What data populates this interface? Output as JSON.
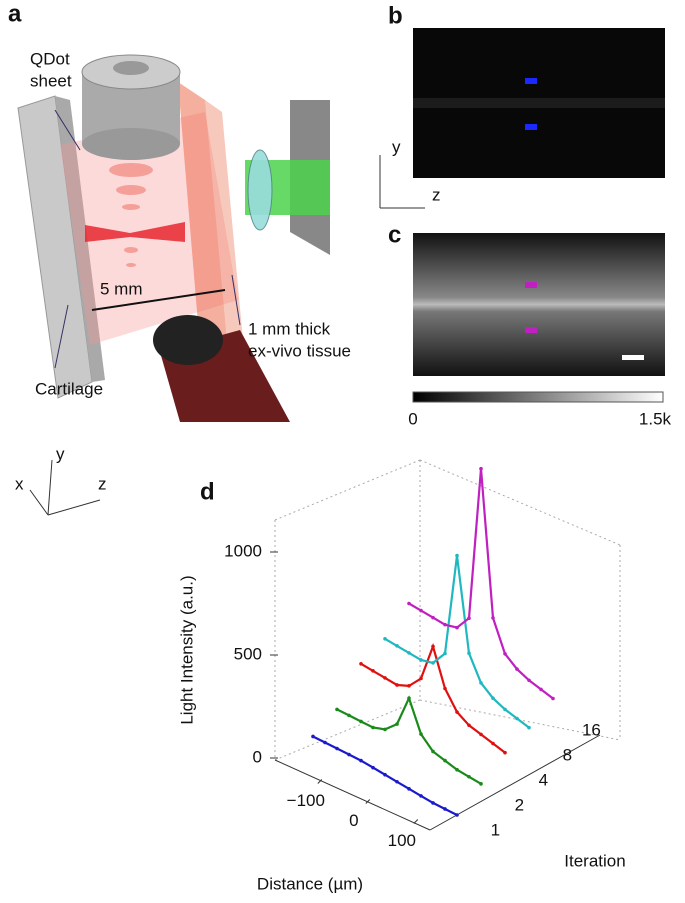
{
  "panel_a": {
    "label": "a",
    "qdot_sheet": [
      "QDot",
      "sheet"
    ],
    "distance": "5 mm",
    "tissue": [
      "1 mm thick",
      "ex-vivo tissue"
    ],
    "cartilage": "Cartilage",
    "axes": {
      "x": "x",
      "y": "y",
      "z": "z"
    }
  },
  "panel_b": {
    "label": "b",
    "axis_y": "y",
    "axis_z": "z"
  },
  "panel_c": {
    "label": "c",
    "colorbar_min": "0",
    "colorbar_max": "1.5k"
  },
  "chart_data": {
    "type": "line3d",
    "label": "d",
    "ylabel": "Light Intensity (a.u.)",
    "xlabel": "Distance (µm)",
    "zlabel": "Iteration",
    "x": [
      -150,
      -125,
      -100,
      -75,
      -50,
      -25,
      0,
      25,
      50,
      75,
      100,
      125,
      150
    ],
    "xticks": [
      {
        "value": -100,
        "label": "−100"
      },
      0,
      100
    ],
    "ylim": [
      0,
      1150
    ],
    "yticks": [
      0,
      500,
      1000
    ],
    "categories": [
      "1",
      "2",
      "4",
      "8",
      "16"
    ],
    "series": [
      {
        "color": "#1a1acc",
        "values": [
          90,
          85,
          80,
          75,
          70,
          60,
          50,
          40,
          30,
          20,
          10,
          5,
          0
        ]
      },
      {
        "color": "#1a8a1a",
        "values": [
          100,
          95,
          90,
          85,
          100,
          150,
          300,
          150,
          90,
          70,
          50,
          40,
          30
        ]
      },
      {
        "color": "#e01010",
        "values": [
          200,
          190,
          180,
          170,
          190,
          250,
          430,
          250,
          160,
          120,
          100,
          80,
          60
        ]
      },
      {
        "color": "#20b8c0",
        "values": [
          200,
          190,
          180,
          170,
          180,
          250,
          750,
          300,
          180,
          130,
          100,
          80,
          60
        ]
      },
      {
        "color": "#c020c0",
        "values": [
          250,
          240,
          230,
          220,
          230,
          300,
          1050,
          350,
          200,
          150,
          120,
          100,
          80
        ]
      }
    ]
  }
}
